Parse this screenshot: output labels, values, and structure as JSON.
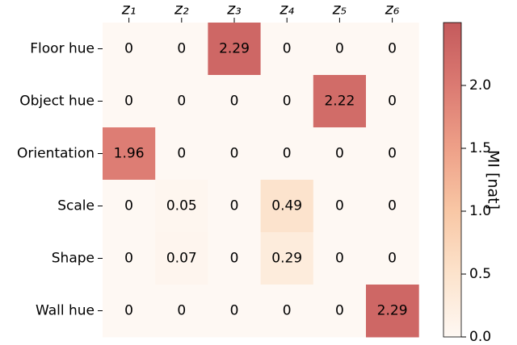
{
  "chart_data": {
    "type": "heatmap",
    "x_categories": [
      "z₁",
      "z₂",
      "z₃",
      "z₄",
      "z₅",
      "z₆"
    ],
    "y_categories": [
      "Floor hue",
      "Object hue",
      "Orientation",
      "Scale",
      "Shape",
      "Wall hue"
    ],
    "values": [
      [
        0,
        0,
        2.29,
        0,
        0,
        0
      ],
      [
        0,
        0,
        0,
        0,
        2.22,
        0
      ],
      [
        1.96,
        0,
        0,
        0,
        0,
        0
      ],
      [
        0,
        0.05,
        0,
        0.49,
        0,
        0
      ],
      [
        0,
        0.07,
        0,
        0.29,
        0,
        0
      ],
      [
        0,
        0,
        0,
        0,
        0,
        2.29
      ]
    ],
    "colorbar_label": "MI [nat]",
    "clim": [
      0,
      2.5
    ],
    "cticks": [
      {
        "value": 0,
        "label": "0.0"
      },
      {
        "value": 0.5,
        "label": "0.5"
      },
      {
        "value": 1,
        "label": "1.0"
      },
      {
        "value": 1.5,
        "label": "1.5"
      },
      {
        "value": 2,
        "label": "2.0"
      }
    ],
    "colormap": [
      "#fef8f3",
      "#fce3cc",
      "#f8c7a5",
      "#eea088",
      "#db7a72",
      "#c45a5c"
    ]
  }
}
